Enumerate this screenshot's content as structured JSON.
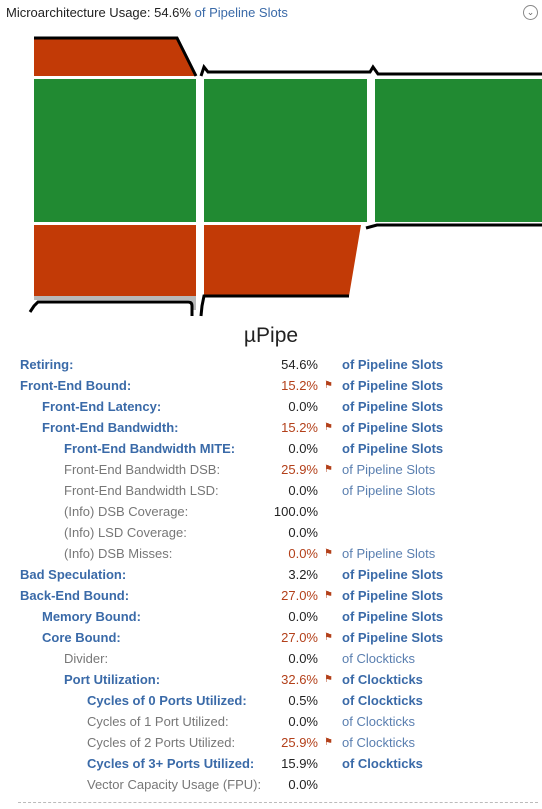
{
  "header": {
    "prefix": "Microarchitecture Usage: 54.6%",
    "suffix": "of Pipeline Slots",
    "chevron": "chevron-down-icon"
  },
  "title": "µPipe",
  "colors": {
    "green": "#218a32",
    "red": "#c23a06",
    "gray": "#b8b8b8",
    "blue": "#3a6aa8",
    "warn": "#b3401a"
  },
  "rows": [
    {
      "label": "Retiring:",
      "value": "54.6%",
      "unit": "of Pipeline Slots",
      "level": 0,
      "style": "blue",
      "flag": false
    },
    {
      "label": "Front-End Bound:",
      "value": "15.2%",
      "unit": "of Pipeline Slots",
      "level": 0,
      "style": "blue",
      "flag": true
    },
    {
      "label": "Front-End Latency:",
      "value": "0.0%",
      "unit": "of Pipeline Slots",
      "level": 1,
      "style": "blue",
      "flag": false
    },
    {
      "label": "Front-End Bandwidth:",
      "value": "15.2%",
      "unit": "of Pipeline Slots",
      "level": 1,
      "style": "blue",
      "flag": true
    },
    {
      "label": "Front-End Bandwidth MITE:",
      "value": "0.0%",
      "unit": "of Pipeline Slots",
      "level": 2,
      "style": "blue",
      "flag": false
    },
    {
      "label": "Front-End Bandwidth DSB:",
      "value": "25.9%",
      "unit": "of Pipeline Slots",
      "level": 2,
      "style": "gray",
      "flag": true
    },
    {
      "label": "Front-End Bandwidth LSD:",
      "value": "0.0%",
      "unit": "of Pipeline Slots",
      "level": 2,
      "style": "gray",
      "flag": false
    },
    {
      "label": "(Info) DSB Coverage:",
      "value": "100.0%",
      "unit": "",
      "level": 2,
      "style": "gray",
      "flag": false
    },
    {
      "label": "(Info) LSD Coverage:",
      "value": "0.0%",
      "unit": "",
      "level": 2,
      "style": "gray",
      "flag": false
    },
    {
      "label": "(Info) DSB Misses:",
      "value": "0.0%",
      "unit": "of Pipeline Slots",
      "level": 2,
      "style": "gray",
      "flag": true
    },
    {
      "label": "Bad Speculation:",
      "value": "3.2%",
      "unit": "of Pipeline Slots",
      "level": 0,
      "style": "blue",
      "flag": false
    },
    {
      "label": "Back-End Bound:",
      "value": "27.0%",
      "unit": "of Pipeline Slots",
      "level": 0,
      "style": "blue",
      "flag": true
    },
    {
      "label": "Memory Bound:",
      "value": "0.0%",
      "unit": "of Pipeline Slots",
      "level": 1,
      "style": "blue",
      "flag": false
    },
    {
      "label": "Core Bound:",
      "value": "27.0%",
      "unit": "of Pipeline Slots",
      "level": 1,
      "style": "blue",
      "flag": true
    },
    {
      "label": "Divider:",
      "value": "0.0%",
      "unit": "of Clockticks",
      "level": 2,
      "style": "gray",
      "flag": false
    },
    {
      "label": "Port Utilization:",
      "value": "32.6%",
      "unit": "of Clockticks",
      "level": 2,
      "style": "blue",
      "flag": true
    },
    {
      "label": "Cycles of 0 Ports Utilized:",
      "value": "0.5%",
      "unit": "of Clockticks",
      "level": 3,
      "style": "blue",
      "flag": false
    },
    {
      "label": "Cycles of 1 Port Utilized:",
      "value": "0.0%",
      "unit": "of Clockticks",
      "level": 3,
      "style": "gray",
      "flag": false
    },
    {
      "label": "Cycles of 2 Ports Utilized:",
      "value": "25.9%",
      "unit": "of Clockticks",
      "level": 3,
      "style": "gray",
      "flag": true
    },
    {
      "label": "Cycles of 3+ Ports Utilized:",
      "value": "15.9%",
      "unit": "of Clockticks",
      "level": 3,
      "style": "blue",
      "flag": false
    },
    {
      "label": "Vector Capacity Usage (FPU):",
      "value": "0.0%",
      "unit": "",
      "level": 3,
      "style": "gray",
      "flag": false
    }
  ]
}
